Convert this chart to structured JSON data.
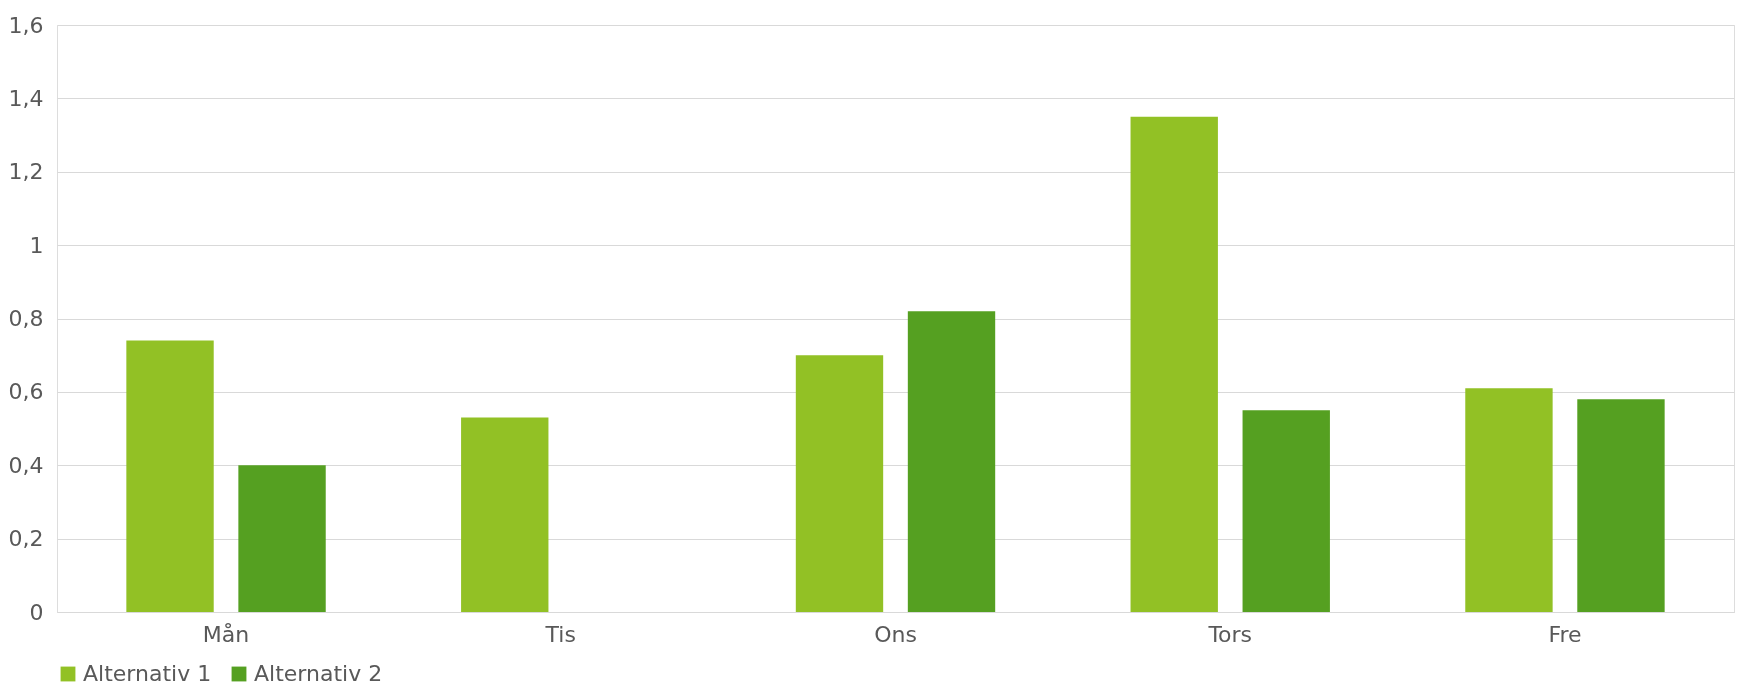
{
  "chart_data": {
    "type": "bar",
    "categories": [
      "Mån",
      "Tis",
      "Ons",
      "Tors",
      "Fre"
    ],
    "series": [
      {
        "name": "Alternativ 1",
        "color": "#92c125",
        "values": [
          0.74,
          0.53,
          0.7,
          1.35,
          0.61
        ]
      },
      {
        "name": "Alternativ 2",
        "color": "#55a021",
        "values": [
          0.4,
          null,
          0.82,
          0.55,
          0.58
        ]
      }
    ],
    "ylim": [
      0,
      1.6
    ],
    "yticks": [
      0,
      {
        "value": 0.2,
        "label": "0,2"
      },
      {
        "value": 0.4,
        "label": "0,4"
      },
      {
        "value": 0.6,
        "label": "0,6"
      },
      {
        "value": 0.8,
        "label": "0,8"
      },
      1,
      {
        "value": 1.2,
        "label": "1,2"
      },
      {
        "value": 1.4,
        "label": "1,4"
      },
      {
        "value": 1.6,
        "label": "1,6"
      }
    ],
    "grid": "y",
    "legend": "bottom"
  }
}
